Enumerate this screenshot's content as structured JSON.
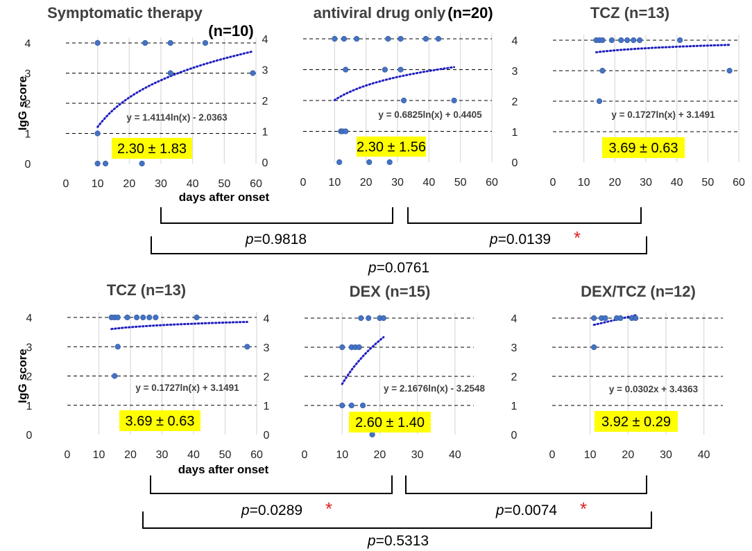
{
  "figure": {
    "ylabel": "IgG score",
    "xlabel": "days after onset",
    "point_color": "#4472C4",
    "trend_color": "#1F1FBF",
    "highlight_color": "#FFFF00",
    "sig_color": "#E02020",
    "sig_mark": "*",
    "p_prefix": "p"
  },
  "comparisons": [
    {
      "p": "=0.9818",
      "sig": false
    },
    {
      "p": "=0.0139",
      "sig": true
    },
    {
      "p": "=0.0761",
      "sig": false
    },
    {
      "p": "=0.0289",
      "sig": true
    },
    {
      "p": "=0.0074",
      "sig": true
    },
    {
      "p": "=0.5313",
      "sig": false
    }
  ],
  "chart_data": [
    {
      "type": "scatter",
      "title": "Symptomatic therapy",
      "title_n": "(n=10)",
      "xlabel": "days after onset",
      "ylabel": "IgG score",
      "xlim": [
        0,
        60
      ],
      "xticks": [
        0,
        10,
        20,
        30,
        40,
        50,
        60
      ],
      "ylim": [
        0,
        4
      ],
      "yticks": [
        0,
        1,
        2,
        3,
        4
      ],
      "points": [
        [
          10,
          4
        ],
        [
          25,
          4
        ],
        [
          33,
          4
        ],
        [
          44,
          4
        ],
        [
          33,
          3
        ],
        [
          59,
          3
        ],
        [
          10,
          1
        ],
        [
          10,
          0
        ],
        [
          12.5,
          0
        ],
        [
          24,
          0
        ]
      ],
      "trend": {
        "kind": "log",
        "a": 1.4114,
        "b": -2.0363,
        "x_range": [
          10,
          59
        ]
      },
      "equation": "y = 1.4114ln(x) - 2.0363",
      "mean_sd": "2.30 ± 1.83"
    },
    {
      "type": "scatter",
      "title": "antiviral drug only",
      "title_n": "(n=20)",
      "xlabel": "",
      "ylabel": "",
      "xlim": [
        0,
        60
      ],
      "xticks": [
        0,
        10,
        20,
        30,
        40,
        50,
        60
      ],
      "ylim": [
        0,
        4
      ],
      "yticks": [
        0,
        1,
        2,
        3,
        4
      ],
      "points": [
        [
          10,
          4
        ],
        [
          13,
          4
        ],
        [
          17,
          4
        ],
        [
          27,
          4
        ],
        [
          31,
          4
        ],
        [
          39,
          4
        ],
        [
          43,
          4
        ],
        [
          13.5,
          3
        ],
        [
          26,
          3
        ],
        [
          31,
          3
        ],
        [
          32,
          2
        ],
        [
          48,
          2
        ],
        [
          12,
          1
        ],
        [
          12.5,
          1
        ],
        [
          13.5,
          1
        ],
        [
          11.5,
          0
        ],
        [
          21,
          0
        ],
        [
          27.5,
          0
        ]
      ],
      "trend": {
        "kind": "log",
        "a": 0.6825,
        "b": 0.4405,
        "x_range": [
          10,
          48
        ]
      },
      "equation": "y = 0.6825ln(x) + 0.4405",
      "mean_sd": "2.30 ± 1.56"
    },
    {
      "type": "scatter",
      "title": "TCZ (n=13)",
      "title_n": "",
      "xlabel": "",
      "ylabel": "",
      "xlim": [
        0,
        60
      ],
      "xticks": [
        0,
        10,
        20,
        30,
        40,
        50,
        60
      ],
      "ylim": [
        0,
        4
      ],
      "yticks": [
        0,
        1,
        2,
        3,
        4
      ],
      "points": [
        [
          14,
          4
        ],
        [
          15,
          4
        ],
        [
          16,
          4
        ],
        [
          19,
          4
        ],
        [
          22,
          4
        ],
        [
          24,
          4
        ],
        [
          26,
          4
        ],
        [
          28,
          4
        ],
        [
          41,
          4
        ],
        [
          16,
          3
        ],
        [
          57,
          3
        ],
        [
          15,
          2
        ]
      ],
      "trend": {
        "kind": "log",
        "a": 0.1727,
        "b": 3.1491,
        "x_range": [
          14,
          57
        ]
      },
      "equation": "y = 0.1727ln(x) + 3.1491",
      "mean_sd": "3.69 ± 0.63"
    },
    {
      "type": "scatter",
      "title": "TCZ (n=13)",
      "title_n": "",
      "xlabel": "days after onset",
      "ylabel": "IgG score",
      "xlim": [
        0,
        60
      ],
      "xticks": [
        0,
        10,
        20,
        30,
        40,
        50,
        60
      ],
      "ylim": [
        0,
        4
      ],
      "yticks": [
        0,
        1,
        2,
        3,
        4
      ],
      "points": [
        [
          14,
          4
        ],
        [
          15,
          4
        ],
        [
          16,
          4
        ],
        [
          19,
          4
        ],
        [
          22,
          4
        ],
        [
          24,
          4
        ],
        [
          26,
          4
        ],
        [
          28,
          4
        ],
        [
          41,
          4
        ],
        [
          16,
          3
        ],
        [
          57,
          3
        ],
        [
          15,
          2
        ]
      ],
      "trend": {
        "kind": "log",
        "a": 0.1727,
        "b": 3.1491,
        "x_range": [
          14,
          57
        ]
      },
      "equation": "y = 0.1727ln(x) + 3.1491",
      "mean_sd": "3.69 ± 0.63"
    },
    {
      "type": "scatter",
      "title": "DEX (n=15)",
      "title_n": "",
      "xlabel": "",
      "ylabel": "",
      "xlim": [
        0,
        45
      ],
      "xticks": [
        0,
        10,
        20,
        30,
        40
      ],
      "ylim": [
        0,
        4
      ],
      "yticks": [
        0,
        1,
        2,
        3,
        4
      ],
      "points": [
        [
          15,
          4
        ],
        [
          17,
          4
        ],
        [
          20,
          4
        ],
        [
          21,
          4
        ],
        [
          10,
          3
        ],
        [
          12.5,
          3
        ],
        [
          13.5,
          3
        ],
        [
          14.5,
          3
        ],
        [
          10,
          1
        ],
        [
          12.5,
          1
        ],
        [
          15.5,
          1
        ],
        [
          18,
          0
        ]
      ],
      "trend": {
        "kind": "log",
        "a": 2.1676,
        "b": -3.2548,
        "x_range": [
          10,
          21
        ]
      },
      "equation": "y = 2.1676ln(x) - 3.2548",
      "mean_sd": "2.60 ± 1.40"
    },
    {
      "type": "scatter",
      "title": "DEX/TCZ (n=12)",
      "title_n": "",
      "xlabel": "",
      "ylabel": "",
      "xlim": [
        0,
        45
      ],
      "xticks": [
        0,
        10,
        20,
        30,
        40
      ],
      "ylim": [
        0,
        4
      ],
      "yticks": [
        0,
        1,
        2,
        3,
        4
      ],
      "points": [
        [
          11,
          4
        ],
        [
          13,
          4
        ],
        [
          14,
          4
        ],
        [
          17,
          4
        ],
        [
          18,
          4
        ],
        [
          21,
          4
        ],
        [
          22,
          4
        ],
        [
          11,
          3
        ]
      ],
      "trend": {
        "kind": "linear",
        "a": 0.0302,
        "b": 3.4363,
        "x_range": [
          11,
          22
        ]
      },
      "equation": "y = 0.0302x + 3.4363",
      "mean_sd": "3.92 ± 0.29"
    }
  ]
}
